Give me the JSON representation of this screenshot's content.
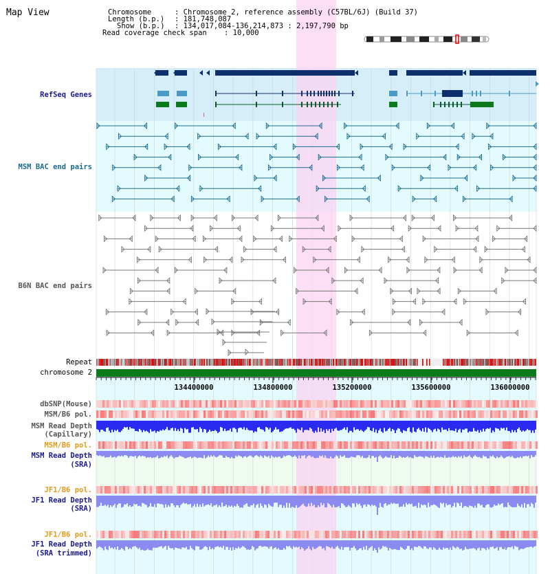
{
  "app_title": "Map View",
  "info": {
    "chromosome_key": "Chromosome",
    "chromosome_val": ": Chromosome 2, reference assembly (C57BL/6J) (Build 37)",
    "length_key": "Length (b.p.)",
    "length_val": ": 181,748,087",
    "show_key": "Show (b.p.)",
    "show_val": ": 134,017,084-136,214,873 : 2,197,790 bp",
    "coverage_key": "Read coverage check span",
    "coverage_val": ": 10,000"
  },
  "tracks": {
    "refseq": "RefSeq Genes",
    "msm_bac": "MSM BAC end pairs",
    "b6n_bac": "B6N BAC end pairs",
    "repeat": "Repeat",
    "chromosome": "chromosome 2",
    "dbsnp": "dbSNP(Mouse)",
    "msm_b6_pol_1": "MSM/B6 pol.",
    "msm_depth_cap_1": "MSM Read Depth",
    "msm_depth_cap_2": "(Capillary)",
    "msm_b6_pol_2": "MSM/B6 pol.",
    "msm_depth_sra_1": "MSM Read Depth",
    "msm_depth_sra_2": "(SRA)",
    "jf1_b6_pol_1": "JF1/B6 pol.",
    "jf1_depth_sra_1": "JF1 Read Depth",
    "jf1_depth_sra_2": "(SRA)",
    "jf1_b6_pol_2": "JF1/B6 pol.",
    "jf1_depth_trim_1": "JF1 Read Depth",
    "jf1_depth_trim_2": "(SRA trimmed)"
  },
  "ruler": {
    "ticks": [
      "134400000",
      "134800000",
      "135200000",
      "135600000",
      "136000000"
    ]
  },
  "colors": {
    "refseq_bg": "#d6eefa",
    "track_bg": "#e4fbfd",
    "highlight": "#fbd3f2",
    "gene_dark": "#0d2f6b",
    "gene_light": "#4a9ac6",
    "gene_green": "#0a7a1a",
    "msm_pair": "#1b6c8e",
    "b6n_pair": "#777777",
    "chrom_bar": "#0a7a1a",
    "depth_cap": "#2a2af0",
    "depth_sra": "#8a8af0",
    "label_navy": "#1a1a8c",
    "label_teal": "#1b6c8e",
    "label_orange": "#e69a1a",
    "label_gray": "#555555"
  }
}
